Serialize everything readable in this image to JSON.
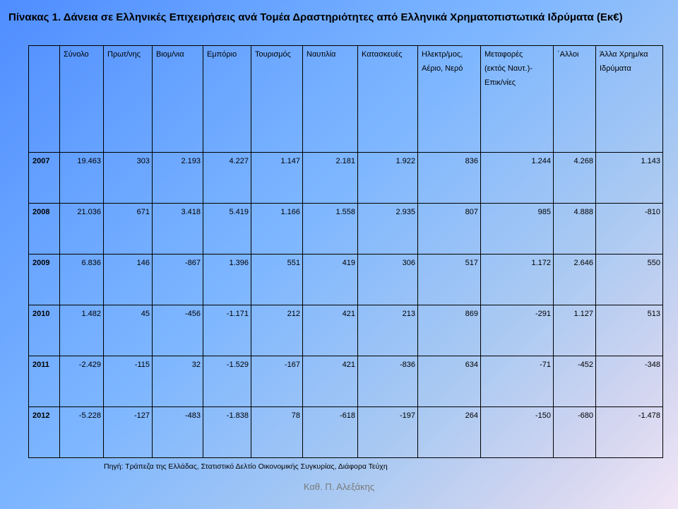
{
  "title": "Πίνακας 1. Δάνεια σε Ελληνικές Επιχειρήσεις ανά Τομέα Δραστηριότητες από Ελληνικά Χρηματοπιστωτικά Ιδρύματα (Εκ€)",
  "table": {
    "corner": "",
    "headers": [
      [
        "Σύνολο"
      ],
      [
        "Πρωτ/νης"
      ],
      [
        "Βιομ/νια"
      ],
      [
        "Εμπόριο"
      ],
      [
        "Τουρισμός"
      ],
      [
        "Ναυτιλία"
      ],
      [
        "Κατασκευές"
      ],
      [
        "Ηλεκτρ/μος,",
        "Αέριο, Νερό"
      ],
      [
        "Μεταφορές",
        "(εκτός Ναυτ.)-",
        "Επικ/νίες"
      ],
      [
        "΄Αλλοι"
      ],
      [
        "Άλλα Χρημ/κα",
        "Ιδρύματα"
      ]
    ],
    "rows": [
      [
        "2007",
        "19.463",
        "303",
        "2.193",
        "4.227",
        "1.147",
        "2.181",
        "1.922",
        "836",
        "1.244",
        "4.268",
        "1.143"
      ],
      [
        "2008",
        "21.036",
        "671",
        "3.418",
        "5.419",
        "1.166",
        "1.558",
        "2.935",
        "807",
        "985",
        "4.888",
        "-810"
      ],
      [
        "2009",
        "6.836",
        "146",
        "-867",
        "1.396",
        "551",
        "419",
        "306",
        "517",
        "1.172",
        "2.646",
        "550"
      ],
      [
        "2010",
        "1.482",
        "45",
        "-456",
        "-1.171",
        "212",
        "421",
        "213",
        "869",
        "-291",
        "1.127",
        "513"
      ],
      [
        "2011",
        "-2.429",
        "-115",
        "32",
        "-1.529",
        "-167",
        "421",
        "-836",
        "634",
        "-71",
        "-452",
        "-348"
      ],
      [
        "2012",
        "-5.228",
        "-127",
        "-483",
        "-1.838",
        "78",
        "-618",
        "-197",
        "264",
        "-150",
        "-680",
        "-1.478"
      ]
    ]
  },
  "source": "Πηγή: Τράπεζα της Ελλάδας, Στατιστικό Δελτίο Οικονομικής Συγκυρίας, Διάφορα Τεύχη",
  "author": "Καθ. Π. Αλεξάκης"
}
